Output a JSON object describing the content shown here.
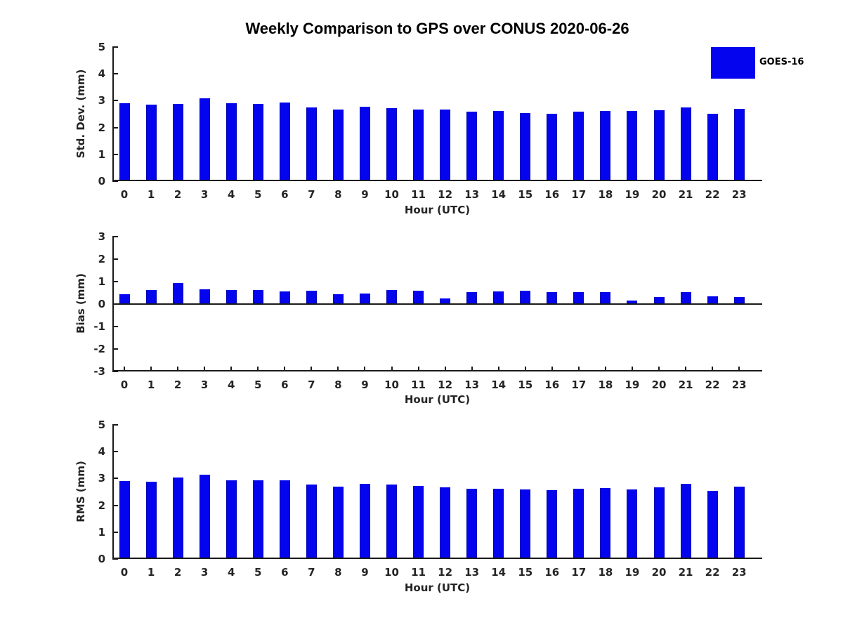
{
  "title": "Weekly Comparison to GPS over CONUS 2020-06-26",
  "legend": {
    "label": "GOES-16",
    "position": "upper right, outside-top of first subplot",
    "swatch_color": "#0404ee"
  },
  "colors": {
    "bar": "#0404ee",
    "bar_edge": "#0000b4",
    "axis": "#1a1a1a",
    "tick_text": "#242424",
    "title_text": "#000000",
    "background": "#ffffff"
  },
  "chart_data": [
    {
      "type": "bar",
      "title": "",
      "ylabel": "Std. Dev. (mm)",
      "xlabel": "Hour (UTC)",
      "series_name": "GOES-16",
      "categories": [
        "0",
        "1",
        "2",
        "3",
        "4",
        "5",
        "6",
        "7",
        "8",
        "9",
        "10",
        "11",
        "12",
        "13",
        "14",
        "15",
        "16",
        "17",
        "18",
        "19",
        "20",
        "21",
        "22",
        "23"
      ],
      "values": [
        2.9,
        2.85,
        2.89,
        3.1,
        2.9,
        2.89,
        2.93,
        2.74,
        2.68,
        2.77,
        2.72,
        2.66,
        2.67,
        2.58,
        2.61,
        2.55,
        2.51,
        2.6,
        2.63,
        2.62,
        2.65,
        2.76,
        2.52,
        2.7
      ],
      "ylim": [
        0,
        5
      ],
      "yticks": [
        0,
        1,
        2,
        3,
        4,
        5
      ],
      "grid": false
    },
    {
      "type": "bar",
      "title": "",
      "ylabel": "Bias (mm)",
      "xlabel": "Hour (UTC)",
      "series_name": "GOES-16",
      "categories": [
        "0",
        "1",
        "2",
        "3",
        "4",
        "5",
        "6",
        "7",
        "8",
        "9",
        "10",
        "11",
        "12",
        "13",
        "14",
        "15",
        "16",
        "17",
        "18",
        "19",
        "20",
        "21",
        "22",
        "23"
      ],
      "values": [
        0.45,
        0.62,
        0.95,
        0.66,
        0.62,
        0.62,
        0.57,
        0.6,
        0.45,
        0.48,
        0.62,
        0.58,
        0.25,
        0.52,
        0.57,
        0.6,
        0.52,
        0.52,
        0.52,
        0.15,
        0.31,
        0.54,
        0.34,
        0.31
      ],
      "ylim": [
        -3,
        3
      ],
      "yticks": [
        -3,
        -2,
        -1,
        0,
        1,
        2,
        3
      ],
      "baseline": 0,
      "grid": false
    },
    {
      "type": "bar",
      "title": "",
      "ylabel": "RMS (mm)",
      "xlabel": "Hour (UTC)",
      "series_name": "GOES-16",
      "categories": [
        "0",
        "1",
        "2",
        "3",
        "4",
        "5",
        "6",
        "7",
        "8",
        "9",
        "10",
        "11",
        "12",
        "13",
        "14",
        "15",
        "16",
        "17",
        "18",
        "19",
        "20",
        "21",
        "22",
        "23"
      ],
      "values": [
        2.9,
        2.89,
        3.03,
        3.13,
        2.94,
        2.93,
        2.94,
        2.77,
        2.7,
        2.8,
        2.78,
        2.71,
        2.68,
        2.61,
        2.63,
        2.58,
        2.56,
        2.63,
        2.65,
        2.6,
        2.66,
        2.8,
        2.53,
        2.7
      ],
      "ylim": [
        0,
        5
      ],
      "yticks": [
        0,
        1,
        2,
        3,
        4,
        5
      ],
      "grid": false
    }
  ]
}
